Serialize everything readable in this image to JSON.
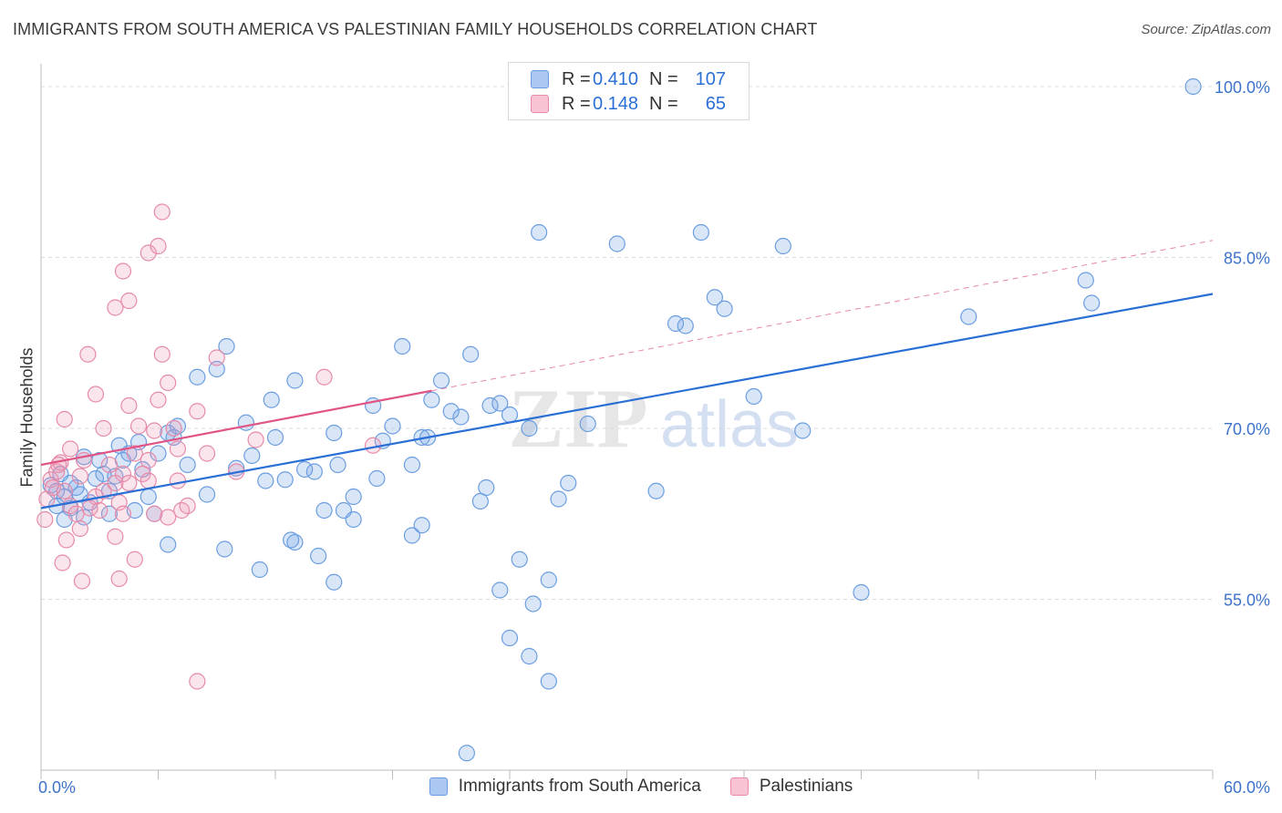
{
  "title": "IMMIGRANTS FROM SOUTH AMERICA VS PALESTINIAN FAMILY HOUSEHOLDS CORRELATION CHART",
  "source": "Source: ZipAtlas.com",
  "watermark": {
    "zip": "ZIP",
    "atlas": "atlas"
  },
  "legend": {
    "rows": [
      {
        "r_label": "R =",
        "r_value": "0.410",
        "n_label": "N =",
        "n_value": "107",
        "color": "#aac8f2",
        "border": "#6a9de0"
      },
      {
        "r_label": "R =",
        "r_value": "0.148",
        "n_label": "N =",
        "n_value": "65",
        "color": "#f8c4d4",
        "border": "#e88aa8"
      }
    ]
  },
  "bottom_legend": {
    "series1": "Immigrants from South America",
    "series2": "Palestinians"
  },
  "colors": {
    "blue_fill": "rgba(120,165,230,0.28)",
    "blue_stroke": "#6a9de0",
    "blue_line": "#2a6fd6",
    "pink_fill": "rgba(240,150,180,0.25)",
    "pink_stroke": "#e68aa8",
    "pink_line": "#e05585",
    "axis_text": "#3d72c9",
    "grid": "#dddddd"
  },
  "chart_data": {
    "type": "scatter",
    "title": "IMMIGRANTS FROM SOUTH AMERICA VS PALESTINIAN FAMILY HOUSEHOLDS CORRELATION CHART",
    "xlabel": "",
    "ylabel": "Family Households",
    "xlim": [
      0,
      60
    ],
    "ylim": [
      40,
      102
    ],
    "x_tick_labels": [
      "0.0%",
      "60.0%"
    ],
    "y_ticks": [
      55,
      70,
      85,
      100
    ],
    "y_tick_labels": [
      "55.0%",
      "70.0%",
      "85.0%",
      "100.0%"
    ],
    "grid": true,
    "legend_position": "top-center",
    "series": [
      {
        "name": "Immigrants from South America",
        "points": [
          [
            0.5,
            65.0
          ],
          [
            0.8,
            64.5
          ],
          [
            1.0,
            66.0
          ],
          [
            1.2,
            64.0
          ],
          [
            1.5,
            63.0
          ],
          [
            1.8,
            64.8
          ],
          [
            2.0,
            64.2
          ],
          [
            2.5,
            63.5
          ],
          [
            2.2,
            67.5
          ],
          [
            3.0,
            67.2
          ],
          [
            3.2,
            66.0
          ],
          [
            3.5,
            64.5
          ],
          [
            4.0,
            68.5
          ],
          [
            4.5,
            67.8
          ],
          [
            5.0,
            68.8
          ],
          [
            5.2,
            66.4
          ],
          [
            5.5,
            64.0
          ],
          [
            6.0,
            67.8
          ],
          [
            6.5,
            69.6
          ],
          [
            6.8,
            69.2
          ],
          [
            7.0,
            70.2
          ],
          [
            7.5,
            66.8
          ],
          [
            8.0,
            74.5
          ],
          [
            9.0,
            75.2
          ],
          [
            9.5,
            77.2
          ],
          [
            10.0,
            66.5
          ],
          [
            10.5,
            70.5
          ],
          [
            10.8,
            67.6
          ],
          [
            11.5,
            65.4
          ],
          [
            11.8,
            72.5
          ],
          [
            12.0,
            69.2
          ],
          [
            12.5,
            65.5
          ],
          [
            13.0,
            74.2
          ],
          [
            13.5,
            66.4
          ],
          [
            14.0,
            66.2
          ],
          [
            14.5,
            62.8
          ],
          [
            15.0,
            69.6
          ],
          [
            15.2,
            66.8
          ],
          [
            16.0,
            64.0
          ],
          [
            15.5,
            62.8
          ],
          [
            17.0,
            72.0
          ],
          [
            17.5,
            68.9
          ],
          [
            18.0,
            70.2
          ],
          [
            18.5,
            77.2
          ],
          [
            19.0,
            66.8
          ],
          [
            19.5,
            69.2
          ],
          [
            20.0,
            72.5
          ],
          [
            20.5,
            74.2
          ],
          [
            21.0,
            71.5
          ],
          [
            21.5,
            71.0
          ],
          [
            22.0,
            76.5
          ],
          [
            22.5,
            63.6
          ],
          [
            23.0,
            72.0
          ],
          [
            23.5,
            72.2
          ],
          [
            24.0,
            71.2
          ],
          [
            24.5,
            58.5
          ],
          [
            25.0,
            70.0
          ],
          [
            25.5,
            87.2
          ],
          [
            26.0,
            56.7
          ],
          [
            26.5,
            63.8
          ],
          [
            27.0,
            65.2
          ],
          [
            28.0,
            70.4
          ],
          [
            29.5,
            86.2
          ],
          [
            31.5,
            64.5
          ],
          [
            32.5,
            79.2
          ],
          [
            33.0,
            79.0
          ],
          [
            33.8,
            87.2
          ],
          [
            34.5,
            81.5
          ],
          [
            35.0,
            80.5
          ],
          [
            36.5,
            72.8
          ],
          [
            38.0,
            86.0
          ],
          [
            39.0,
            69.8
          ],
          [
            42.0,
            55.6
          ],
          [
            47.5,
            79.8
          ],
          [
            53.5,
            83.0
          ],
          [
            53.8,
            81.0
          ],
          [
            59.0,
            100.0
          ],
          [
            21.8,
            41.5
          ],
          [
            24.0,
            51.6
          ],
          [
            25.0,
            50.0
          ],
          [
            26.0,
            47.8
          ],
          [
            25.2,
            54.6
          ],
          [
            23.5,
            55.8
          ],
          [
            19.5,
            61.5
          ],
          [
            19.0,
            60.6
          ],
          [
            16.0,
            62.0
          ],
          [
            15.0,
            56.5
          ],
          [
            14.2,
            58.8
          ],
          [
            13.0,
            60.0
          ],
          [
            11.2,
            57.6
          ],
          [
            9.4,
            59.4
          ],
          [
            6.5,
            59.8
          ],
          [
            5.8,
            62.5
          ],
          [
            4.8,
            62.8
          ],
          [
            3.5,
            62.5
          ],
          [
            2.2,
            62.2
          ],
          [
            1.2,
            62.0
          ],
          [
            0.8,
            63.2
          ],
          [
            1.5,
            65.2
          ],
          [
            2.8,
            65.6
          ],
          [
            3.8,
            65.8
          ],
          [
            4.2,
            67.2
          ],
          [
            8.5,
            64.2
          ],
          [
            12.8,
            60.2
          ],
          [
            17.2,
            65.6
          ],
          [
            19.8,
            69.2
          ],
          [
            22.8,
            64.8
          ]
        ]
      },
      {
        "name": "Palestinians",
        "points": [
          [
            0.2,
            62.0
          ],
          [
            0.5,
            65.5
          ],
          [
            0.8,
            66.2
          ],
          [
            1.0,
            67.0
          ],
          [
            1.2,
            64.5
          ],
          [
            1.5,
            63.2
          ],
          [
            1.8,
            62.5
          ],
          [
            2.0,
            65.8
          ],
          [
            2.2,
            67.2
          ],
          [
            2.5,
            63.0
          ],
          [
            2.8,
            64.0
          ],
          [
            3.0,
            62.8
          ],
          [
            3.2,
            64.5
          ],
          [
            3.5,
            66.8
          ],
          [
            3.8,
            65.2
          ],
          [
            4.0,
            63.5
          ],
          [
            4.2,
            62.5
          ],
          [
            4.5,
            65.2
          ],
          [
            4.8,
            67.8
          ],
          [
            5.0,
            70.2
          ],
          [
            5.2,
            66.0
          ],
          [
            5.5,
            67.2
          ],
          [
            5.8,
            69.8
          ],
          [
            6.0,
            72.5
          ],
          [
            6.2,
            76.5
          ],
          [
            6.5,
            74.0
          ],
          [
            6.8,
            70.0
          ],
          [
            7.0,
            68.2
          ],
          [
            7.2,
            62.8
          ],
          [
            7.5,
            63.2
          ],
          [
            8.0,
            71.5
          ],
          [
            8.5,
            67.8
          ],
          [
            9.0,
            76.2
          ],
          [
            10.0,
            66.2
          ],
          [
            1.2,
            70.8
          ],
          [
            1.5,
            68.2
          ],
          [
            2.0,
            61.2
          ],
          [
            2.4,
            76.5
          ],
          [
            2.8,
            73.0
          ],
          [
            3.2,
            70.0
          ],
          [
            3.8,
            60.5
          ],
          [
            4.0,
            56.8
          ],
          [
            4.2,
            66.0
          ],
          [
            4.5,
            72.0
          ],
          [
            4.8,
            58.5
          ],
          [
            5.5,
            65.4
          ],
          [
            5.8,
            62.5
          ],
          [
            6.5,
            62.2
          ],
          [
            7.0,
            65.4
          ],
          [
            8.0,
            47.8
          ],
          [
            14.5,
            74.5
          ],
          [
            17.0,
            68.5
          ],
          [
            11.0,
            69.0
          ],
          [
            3.8,
            80.6
          ],
          [
            4.2,
            83.8
          ],
          [
            4.5,
            81.2
          ],
          [
            5.5,
            85.4
          ],
          [
            6.0,
            86.0
          ],
          [
            6.2,
            89.0
          ],
          [
            0.9,
            66.8
          ],
          [
            1.1,
            58.2
          ],
          [
            2.1,
            56.6
          ],
          [
            1.3,
            60.2
          ],
          [
            0.3,
            63.8
          ],
          [
            0.6,
            64.8
          ]
        ]
      }
    ],
    "trend_lines": [
      {
        "series": "Immigrants from South America",
        "x": [
          0,
          60
        ],
        "y": [
          63.0,
          81.8
        ]
      },
      {
        "series": "Palestinians",
        "x": [
          0,
          20
        ],
        "y": [
          66.8,
          73.3
        ],
        "dashed_extension_to": [
          60,
          86.5
        ]
      }
    ]
  }
}
